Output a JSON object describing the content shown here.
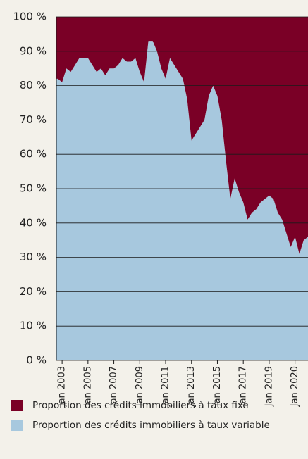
{
  "chart_data": {
    "type": "stacked_area",
    "categories": [
      null,
      "Jan 2003",
      null,
      null,
      null,
      null,
      null,
      "Jan 2005",
      null,
      null,
      null,
      null,
      null,
      "Jan 2007",
      null,
      null,
      null,
      null,
      null,
      "Jan 2009",
      null,
      null,
      null,
      null,
      null,
      "Jan 2011",
      null,
      null,
      null,
      null,
      null,
      "Jan 2013",
      null,
      null,
      null,
      null,
      null,
      "Jan 2015",
      null,
      null,
      null,
      null,
      null,
      "Jan 2017",
      null,
      null,
      null,
      null,
      null,
      "Jan 2019",
      null,
      null,
      null,
      null,
      null,
      "Jan 2020",
      null,
      null,
      null
    ],
    "series": [
      {
        "name": "Proportion des crédits immobiliers à taux variable",
        "color": "#a7c8de",
        "values": [
          82,
          81,
          85,
          84,
          86,
          88,
          88,
          88,
          86,
          84,
          85,
          83,
          85,
          85,
          86,
          88,
          87,
          87,
          88,
          84,
          81,
          93,
          93,
          90,
          85,
          82,
          88,
          86,
          84,
          82,
          76,
          64,
          66,
          68,
          70,
          77,
          80,
          77,
          70,
          58,
          47,
          53,
          49,
          46,
          41,
          43,
          44,
          46,
          47,
          48,
          47,
          43,
          41,
          37,
          33,
          36,
          31,
          35,
          36
        ]
      },
      {
        "name": "Proportion des crédits immobiliers à taux fixe",
        "color": "#7a0026",
        "values": [
          18,
          19,
          15,
          16,
          14,
          12,
          12,
          12,
          14,
          16,
          15,
          17,
          15,
          15,
          14,
          12,
          13,
          13,
          12,
          16,
          19,
          7,
          7,
          10,
          15,
          18,
          12,
          14,
          16,
          18,
          24,
          36,
          34,
          32,
          30,
          23,
          20,
          23,
          30,
          42,
          53,
          47,
          51,
          54,
          59,
          57,
          56,
          54,
          53,
          52,
          53,
          57,
          59,
          63,
          67,
          64,
          69,
          65,
          64
        ]
      }
    ],
    "ylim": [
      0,
      100
    ],
    "yticks": [
      {
        "value": 0,
        "label": "0 %"
      },
      {
        "value": 10,
        "label": "10 %"
      },
      {
        "value": 20,
        "label": "20 %"
      },
      {
        "value": 30,
        "label": "30 %"
      },
      {
        "value": 40,
        "label": "40 %"
      },
      {
        "value": 50,
        "label": "50 %"
      },
      {
        "value": 60,
        "label": "60 %"
      },
      {
        "value": 70,
        "label": "70 %"
      },
      {
        "value": 80,
        "label": "80 %"
      },
      {
        "value": 90,
        "label": "90 %"
      },
      {
        "value": 100,
        "label": "100 %"
      }
    ],
    "grid": true,
    "legend": "bottom"
  }
}
